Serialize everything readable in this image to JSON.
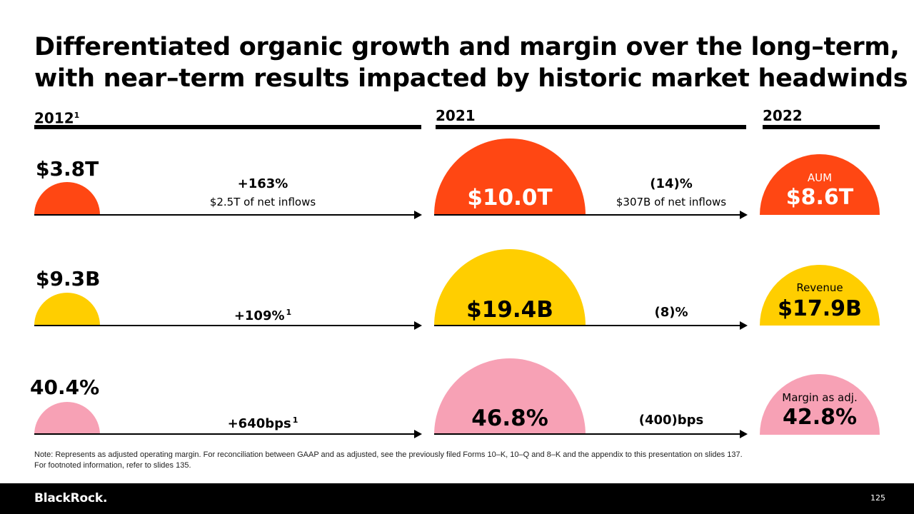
{
  "title": {
    "line1": "Differentiated organic growth and margin over the long–term,",
    "line2": "with near–term results impacted by historic market headwinds"
  },
  "columns": {
    "c2012": {
      "label": "2012",
      "sup": "1"
    },
    "c2021": {
      "label": "2021"
    },
    "c2022": {
      "label": "2022"
    }
  },
  "rows": {
    "aum": {
      "v2012": "$3.8T",
      "change1": "+163%",
      "change1_sub": "$2.5T of net inflows",
      "v2021": "$10.0T",
      "change2": "(14)%",
      "change2_sub": "$307B of net inflows",
      "label2022": "AUM",
      "v2022": "$8.6T",
      "color": "#ff4713"
    },
    "revenue": {
      "v2012": "$9.3B",
      "change1": "+109%",
      "change1_sup": "1",
      "v2021": "$19.4B",
      "change2": "(8)%",
      "label2022": "Revenue",
      "v2022": "$17.9B",
      "color": "#ffce00"
    },
    "margin": {
      "v2012": "40.4%",
      "change1": "+640bps",
      "change1_sup": "1",
      "v2021": "46.8%",
      "change2": "(400)bps",
      "label2022": "Margin as adj.",
      "v2022": "42.8%",
      "color": "#f7a1b5"
    }
  },
  "note": {
    "line1": "Note: Represents as adjusted operating margin. For reconciliation between GAAP and as adjusted, see the previously filed Forms 10–K, 10–Q and 8–K and the appendix to this presentation on slides 137.",
    "line2": "For footnoted information, refer to slides 135."
  },
  "footer": {
    "logo": "BlackRock.",
    "page_number": "125"
  }
}
